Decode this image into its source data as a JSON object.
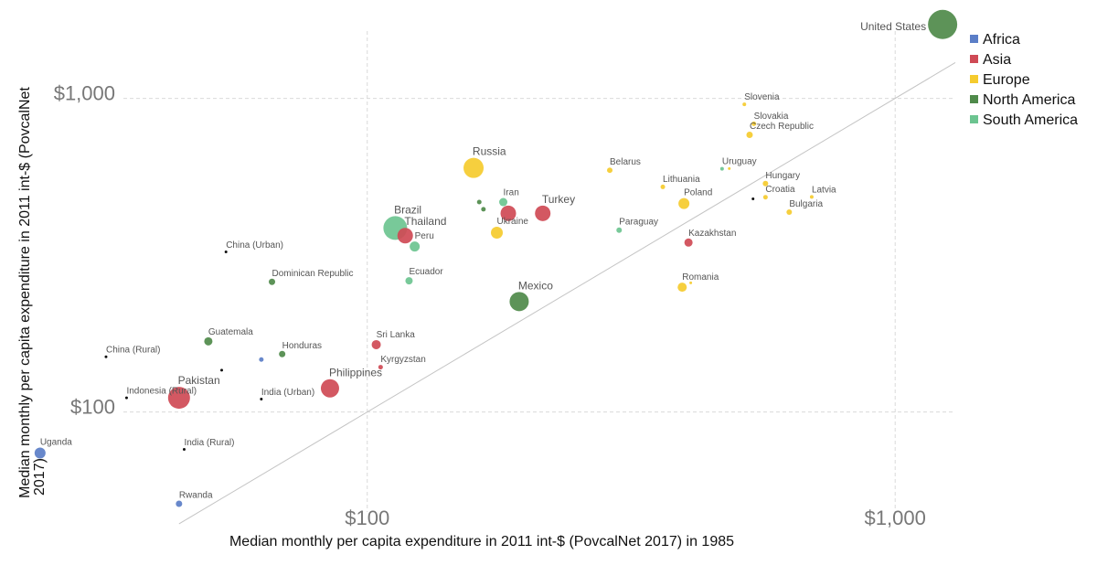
{
  "chart_data": {
    "type": "scatter",
    "title": "",
    "xlabel": "Median monthly per capita expenditure in 2011 int-$ (PovcalNet 2017) in 1985",
    "ylabel_lines": [
      "Median monthly per capita expenditure in 2011 int-$ (PovcalNet",
      "2017)"
    ],
    "x_scale": "log",
    "y_scale": "log",
    "xlim": [
      22,
      1300
    ],
    "ylim": [
      48,
      1800
    ],
    "x_ticks": [
      {
        "value": 100,
        "label": "$100"
      },
      {
        "value": 1000,
        "label": "$1,000"
      }
    ],
    "y_ticks": [
      {
        "value": 100,
        "label": "$100"
      },
      {
        "value": 1000,
        "label": "$1,000"
      }
    ],
    "grid": true,
    "reference_line": "y = x",
    "legend": {
      "position": "top-right",
      "entries": [
        {
          "name": "Africa",
          "color": "#5b7ec7"
        },
        {
          "name": "Asia",
          "color": "#cf4a55"
        },
        {
          "name": "Europe",
          "color": "#f5cb2e"
        },
        {
          "name": "North America",
          "color": "#4f8a4a"
        },
        {
          "name": "South America",
          "color": "#6cc490"
        }
      ]
    },
    "points": [
      {
        "label": "United States",
        "region": "North America",
        "x": 1230,
        "y": 1720,
        "size": 16,
        "label_side": "left"
      },
      {
        "label": "Slovenia",
        "region": "Europe",
        "x": 518,
        "y": 957,
        "size": 2
      },
      {
        "label": "Slovakia",
        "region": "Europe",
        "x": 540,
        "y": 830,
        "size": 2.5
      },
      {
        "label": "Czech Republic",
        "region": "Europe",
        "x": 530,
        "y": 765,
        "size": 3.5
      },
      {
        "label": "Russia",
        "region": "Europe",
        "x": 159,
        "y": 600,
        "size": 11
      },
      {
        "label": "Belarus",
        "region": "Europe",
        "x": 288,
        "y": 590,
        "size": 3
      },
      {
        "label": "Uruguay",
        "region": "South America",
        "x": 470,
        "y": 596,
        "size": 2
      },
      {
        "label": "",
        "region": "Europe",
        "x": 485,
        "y": 597,
        "size": 1.5
      },
      {
        "label": "Hungary",
        "region": "Europe",
        "x": 568,
        "y": 535,
        "size": 3
      },
      {
        "label": "Lithuania",
        "region": "Europe",
        "x": 363,
        "y": 522,
        "size": 2.5
      },
      {
        "label": "Croatia",
        "region": "Europe",
        "x": 568,
        "y": 484,
        "size": 2.5
      },
      {
        "label": "",
        "region": "Other",
        "x": 538,
        "y": 478,
        "size": 1.5
      },
      {
        "label": "Latvia",
        "region": "Europe",
        "x": 695,
        "y": 485,
        "size": 2
      },
      {
        "label": "Poland",
        "region": "Europe",
        "x": 398,
        "y": 462,
        "size": 6
      },
      {
        "label": "Bulgaria",
        "region": "Europe",
        "x": 630,
        "y": 434,
        "size": 3
      },
      {
        "label": "Iran",
        "region": "South America",
        "x": 181,
        "y": 467,
        "size": 4.5
      },
      {
        "label": "",
        "region": "North America",
        "x": 163,
        "y": 467,
        "size": 2.5
      },
      {
        "label": "",
        "region": "North America",
        "x": 166,
        "y": 443,
        "size": 2.5
      },
      {
        "label": "",
        "region": "Asia",
        "x": 185,
        "y": 430,
        "size": 8.5
      },
      {
        "label": "Turkey",
        "region": "Asia",
        "x": 215,
        "y": 430,
        "size": 8.5
      },
      {
        "label": "Brazil",
        "region": "South America",
        "x": 113,
        "y": 386,
        "size": 13
      },
      {
        "label": "Thailand",
        "region": "Asia",
        "x": 118,
        "y": 365,
        "size": 8.5
      },
      {
        "label": "Ukraine",
        "region": "Europe",
        "x": 176,
        "y": 373,
        "size": 6.5
      },
      {
        "label": "Paraguay",
        "region": "South America",
        "x": 300,
        "y": 380,
        "size": 3
      },
      {
        "label": "Peru",
        "region": "South America",
        "x": 123,
        "y": 337,
        "size": 5.5
      },
      {
        "label": "Kazakhstan",
        "region": "Asia",
        "x": 406,
        "y": 347,
        "size": 4.5
      },
      {
        "label": "China (Urban)",
        "region": "Other",
        "x": 54,
        "y": 324,
        "size": 1.5
      },
      {
        "label": "Dominican Republic",
        "region": "North America",
        "x": 66,
        "y": 260,
        "size": 3.5
      },
      {
        "label": "Ecuador",
        "region": "South America",
        "x": 120,
        "y": 262,
        "size": 4
      },
      {
        "label": "Romania",
        "region": "Europe",
        "x": 395,
        "y": 250,
        "size": 5
      },
      {
        "label": "",
        "region": "Europe",
        "x": 410,
        "y": 258,
        "size": 1.5
      },
      {
        "label": "Mexico",
        "region": "North America",
        "x": 194,
        "y": 225,
        "size": 10.5
      },
      {
        "label": "Guatemala",
        "region": "North America",
        "x": 50,
        "y": 168,
        "size": 4.5
      },
      {
        "label": "Sri Lanka",
        "region": "Asia",
        "x": 104,
        "y": 164,
        "size": 5
      },
      {
        "label": "China (Rural)",
        "region": "Other",
        "x": 32,
        "y": 150,
        "size": 1.5
      },
      {
        "label": "Honduras",
        "region": "North America",
        "x": 69,
        "y": 153,
        "size": 3.5
      },
      {
        "label": "",
        "region": "Africa",
        "x": 63,
        "y": 147,
        "size": 2.5
      },
      {
        "label": "Kyrgyzstan",
        "region": "Asia",
        "x": 106,
        "y": 139,
        "size": 2.5
      },
      {
        "label": "",
        "region": "Other",
        "x": 53,
        "y": 136,
        "size": 1.5
      },
      {
        "label": "Pakistan",
        "region": "Asia",
        "x": 44,
        "y": 111,
        "size": 12
      },
      {
        "label": "Philippines",
        "region": "Asia",
        "x": 85,
        "y": 119,
        "size": 10
      },
      {
        "label": "Indonesia (Rural)",
        "region": "Other",
        "x": 35,
        "y": 111,
        "size": 1.5
      },
      {
        "label": "India (Urban)",
        "region": "Other",
        "x": 63,
        "y": 110,
        "size": 1.5
      },
      {
        "label": "Uganda",
        "region": "Africa",
        "x": 24,
        "y": 74,
        "size": 6
      },
      {
        "label": "India (Rural)",
        "region": "Other",
        "x": 45,
        "y": 76,
        "size": 1.5
      },
      {
        "label": "Rwanda",
        "region": "Africa",
        "x": 44,
        "y": 51,
        "size": 3.5
      }
    ]
  },
  "colors": {
    "other": "#111111",
    "grid": "#d9d9d9",
    "reference_line": "#c4c4c4"
  }
}
